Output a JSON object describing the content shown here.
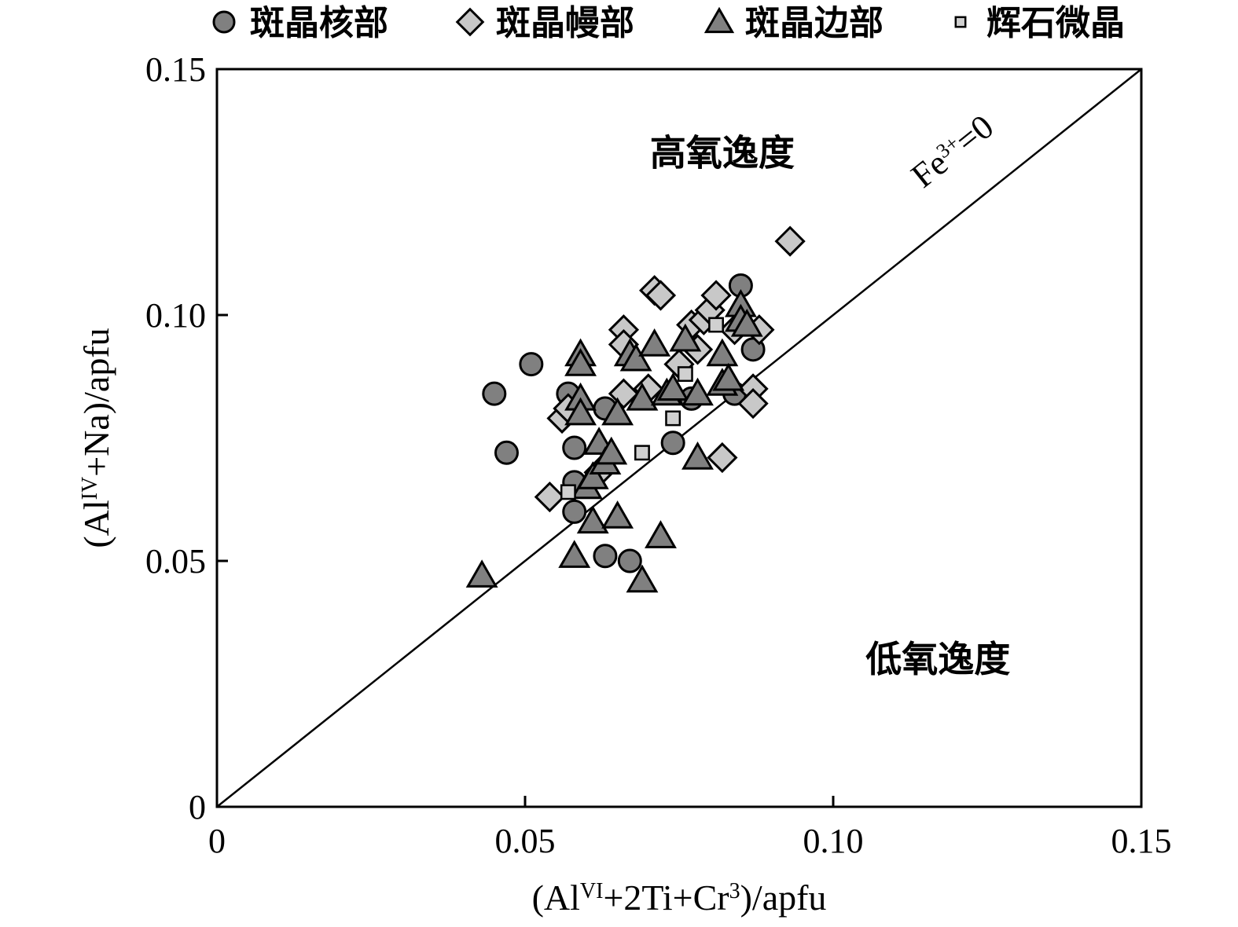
{
  "chart_data": {
    "type": "scatter",
    "xlim": [
      0,
      0.15
    ],
    "ylim": [
      0,
      0.15
    ],
    "x_ticks": [
      {
        "value": 0,
        "label": "0"
      },
      {
        "value": 0.05,
        "label": "0.05"
      },
      {
        "value": 0.1,
        "label": "0.10"
      },
      {
        "value": 0.15,
        "label": "0.15"
      }
    ],
    "y_ticks": [
      {
        "value": 0,
        "label": "0"
      },
      {
        "value": 0.05,
        "label": "0.05"
      },
      {
        "value": 0.1,
        "label": "0.10"
      },
      {
        "value": 0.15,
        "label": "0.15"
      }
    ],
    "xlabel": {
      "pre": "(Al",
      "sup1": "VI",
      "mid": "+2Ti+Cr",
      "sup2": "3",
      "post": ")/apfu"
    },
    "ylabel": {
      "pre": "(Al",
      "sup": "IV",
      "post": "+Na)/apfu"
    },
    "legend_position": "top",
    "reference_line": {
      "x": [
        0,
        0.15
      ],
      "y": [
        0,
        0.15
      ],
      "label_main": "Fe",
      "label_sup": "3+",
      "label_post": "=0"
    },
    "region_labels": [
      {
        "text": "高氧逸度",
        "x": 0.082,
        "y": 0.133
      },
      {
        "text": "低氧逸度",
        "x": 0.117,
        "y": 0.03
      }
    ],
    "series": [
      {
        "name": "斑晶核部",
        "marker": "circle",
        "color": "#808080",
        "points": [
          [
            0.045,
            0.084
          ],
          [
            0.047,
            0.072
          ],
          [
            0.051,
            0.09
          ],
          [
            0.057,
            0.084
          ],
          [
            0.058,
            0.073
          ],
          [
            0.058,
            0.066
          ],
          [
            0.058,
            0.06
          ],
          [
            0.063,
            0.081
          ],
          [
            0.063,
            0.051
          ],
          [
            0.067,
            0.05
          ],
          [
            0.074,
            0.074
          ],
          [
            0.077,
            0.083
          ],
          [
            0.084,
            0.084
          ],
          [
            0.085,
            0.106
          ],
          [
            0.087,
            0.093
          ]
        ]
      },
      {
        "name": "斑晶幔部",
        "marker": "diamond",
        "color": "#c8c8c8",
        "points": [
          [
            0.054,
            0.063
          ],
          [
            0.056,
            0.079
          ],
          [
            0.057,
            0.081
          ],
          [
            0.062,
            0.068
          ],
          [
            0.066,
            0.097
          ],
          [
            0.066,
            0.094
          ],
          [
            0.066,
            0.084
          ],
          [
            0.07,
            0.085
          ],
          [
            0.071,
            0.105
          ],
          [
            0.072,
            0.104
          ],
          [
            0.075,
            0.09
          ],
          [
            0.077,
            0.098
          ],
          [
            0.078,
            0.093
          ],
          [
            0.079,
            0.099
          ],
          [
            0.08,
            0.101
          ],
          [
            0.081,
            0.104
          ],
          [
            0.082,
            0.071
          ],
          [
            0.084,
            0.097
          ],
          [
            0.087,
            0.085
          ],
          [
            0.087,
            0.082
          ],
          [
            0.088,
            0.097
          ],
          [
            0.093,
            0.115
          ]
        ]
      },
      {
        "name": "斑晶边部",
        "marker": "triangle",
        "color": "#808080",
        "points": [
          [
            0.043,
            0.047
          ],
          [
            0.058,
            0.051
          ],
          [
            0.059,
            0.092
          ],
          [
            0.059,
            0.09
          ],
          [
            0.059,
            0.083
          ],
          [
            0.059,
            0.08
          ],
          [
            0.06,
            0.065
          ],
          [
            0.061,
            0.058
          ],
          [
            0.061,
            0.067
          ],
          [
            0.062,
            0.074
          ],
          [
            0.063,
            0.07
          ],
          [
            0.064,
            0.072
          ],
          [
            0.065,
            0.059
          ],
          [
            0.065,
            0.08
          ],
          [
            0.067,
            0.092
          ],
          [
            0.068,
            0.091
          ],
          [
            0.069,
            0.046
          ],
          [
            0.069,
            0.083
          ],
          [
            0.071,
            0.094
          ],
          [
            0.072,
            0.055
          ],
          [
            0.073,
            0.084
          ],
          [
            0.074,
            0.085
          ],
          [
            0.076,
            0.095
          ],
          [
            0.078,
            0.071
          ],
          [
            0.078,
            0.084
          ],
          [
            0.082,
            0.092
          ],
          [
            0.082,
            0.086
          ],
          [
            0.083,
            0.087
          ],
          [
            0.085,
            0.102
          ],
          [
            0.085,
            0.099
          ],
          [
            0.086,
            0.098
          ]
        ]
      },
      {
        "name": "辉石微晶",
        "marker": "square",
        "color": "#d0d0d0",
        "points": [
          [
            0.057,
            0.064
          ],
          [
            0.069,
            0.072
          ],
          [
            0.074,
            0.079
          ],
          [
            0.076,
            0.088
          ],
          [
            0.081,
            0.098
          ]
        ]
      }
    ]
  }
}
